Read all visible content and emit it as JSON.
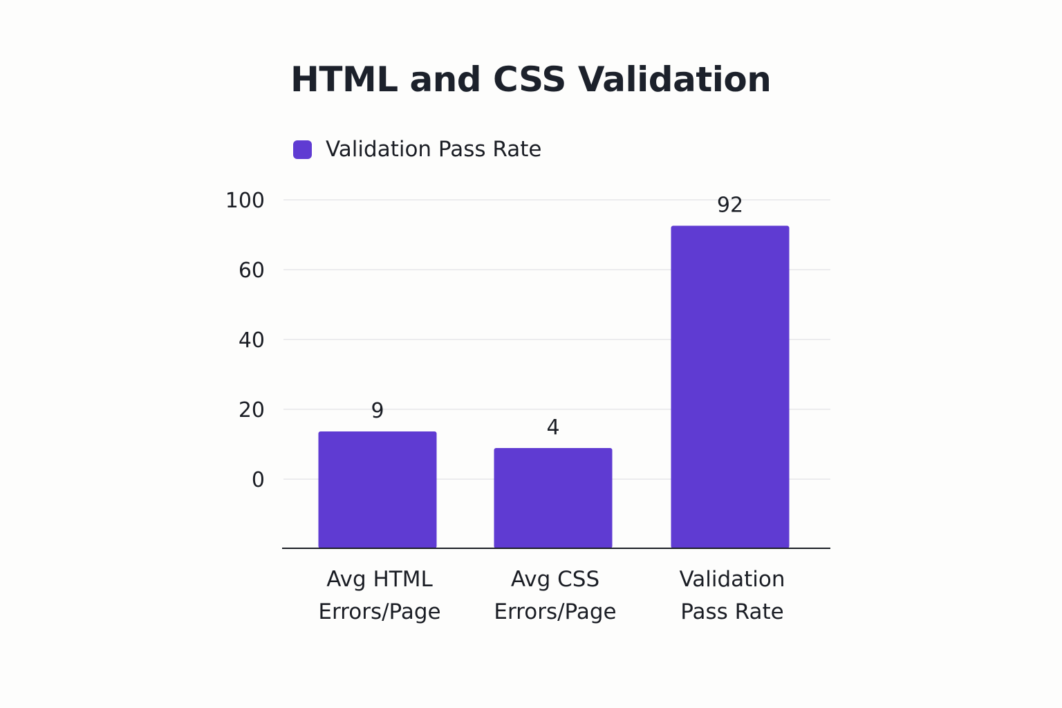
{
  "chart_data": {
    "type": "bar",
    "title": "HTML and CSS Validation",
    "legend": {
      "label": "Validation Pass Rate",
      "placement": "top-left"
    },
    "categories": [
      [
        "Avg HTML",
        "Errors/Page"
      ],
      [
        "Avg CSS",
        "Errors/Page"
      ],
      [
        "Validation",
        "Pass Rate"
      ]
    ],
    "values": [
      9,
      4,
      92
    ],
    "data_labels": [
      "9",
      "4",
      "92"
    ],
    "y_ticks": [
      "0",
      "20",
      "40",
      "60",
      "100"
    ],
    "ylim": [
      0,
      100
    ],
    "grid": true,
    "xlabel": "",
    "ylabel": "",
    "colors": {
      "bar": "#5f3bd2",
      "grid": "#e6e6ea",
      "axis": "#1a1d24"
    }
  }
}
